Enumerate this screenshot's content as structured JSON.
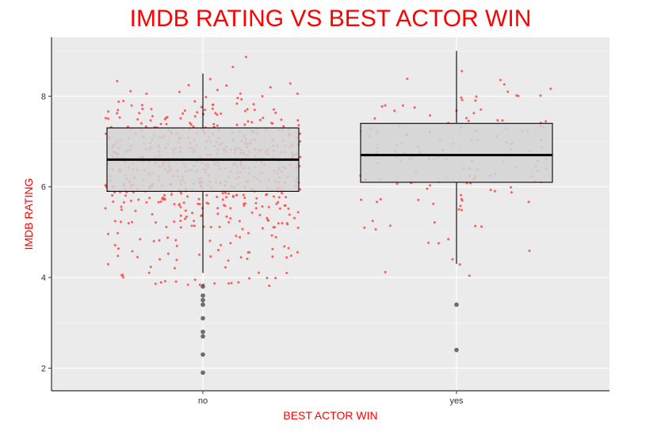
{
  "chart_data": {
    "type": "boxplot",
    "title": "IMDB RATING VS BEST ACTOR WIN",
    "xlabel": "BEST ACTOR WIN",
    "ylabel": "IMDB RATING",
    "categories": [
      "no",
      "yes"
    ],
    "ylim": [
      1.5,
      9.3
    ],
    "yticks": [
      2,
      4,
      6,
      8
    ],
    "grid": true,
    "colors": {
      "title": "#ff0000",
      "axis_titles": "#ff0000",
      "panel_background": "#ebebeb",
      "grid": "#ffffff",
      "jitter_points": "#ff4d4d",
      "box_fill": "#d3d3d3",
      "box_line": "#000000",
      "outliers": "#333333"
    },
    "boxes": [
      {
        "category": "no",
        "q1": 5.9,
        "median": 6.6,
        "q3": 7.3,
        "whisker_low": 4.1,
        "whisker_high": 8.5,
        "outliers": [
          3.8,
          3.6,
          3.5,
          3.4,
          3.1,
          2.8,
          2.7,
          2.3,
          1.9
        ]
      },
      {
        "category": "yes",
        "q1": 6.1,
        "median": 6.7,
        "q3": 7.4,
        "whisker_low": 4.3,
        "whisker_high": 9.0,
        "outliers": [
          3.4,
          2.4
        ]
      }
    ],
    "jitter": {
      "no": {
        "count": 620,
        "seed": 11
      },
      "yes": {
        "count": 145,
        "seed": 29
      }
    }
  }
}
